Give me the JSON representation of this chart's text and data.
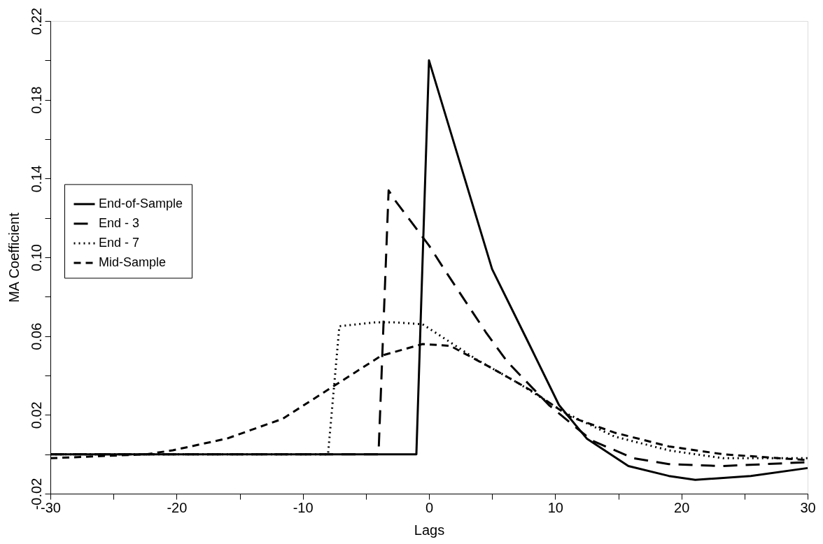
{
  "chart_data": {
    "type": "line",
    "xlabel": "Lags",
    "ylabel": "MA Coefficient",
    "xlim": [
      -30,
      30
    ],
    "ylim": [
      -0.02,
      0.22
    ],
    "xticks": [
      -30,
      {
        "value": -25,
        "label": null
      },
      -20,
      {
        "value": -15,
        "label": null
      },
      -10,
      {
        "value": -5,
        "label": null
      },
      0,
      {
        "value": 5,
        "label": null
      },
      10,
      {
        "value": 15,
        "label": null
      },
      20,
      {
        "value": 25,
        "label": null
      },
      30
    ],
    "yticks": [
      -0.02,
      {
        "value": 0,
        "label": null
      },
      0.02,
      {
        "value": 0.04,
        "label": null
      },
      0.06,
      {
        "value": 0.08,
        "label": null
      },
      {
        "value": 0.1,
        "label": "0.10"
      },
      {
        "value": 0.12,
        "label": null
      },
      0.14,
      {
        "value": 0.16,
        "label": null
      },
      0.18,
      {
        "value": 0.2,
        "label": null
      },
      0.22
    ],
    "grid": false,
    "legend": "left",
    "marker": "none",
    "series": [
      {
        "name": "End-of-Sample",
        "color": "#000000",
        "line_style": "solid",
        "x": [
          -30,
          -1,
          0,
          2.5,
          5,
          7.7,
          10.3,
          12.5,
          15.8,
          19,
          21.1,
          25.5,
          30
        ],
        "values": [
          0,
          0,
          0.2,
          0.147,
          0.094,
          0.059,
          0.025,
          0.008,
          -0.006,
          -0.011,
          -0.013,
          -0.011,
          -0.007
        ]
      },
      {
        "name": "End - 3",
        "color": "#000000",
        "line_style": "longdash",
        "x": [
          -30,
          -4,
          -3.2,
          -2.7,
          0,
          1.2,
          4.5,
          6.2,
          9.5,
          12.9,
          16.2,
          19,
          23.3,
          30
        ],
        "values": [
          0,
          0,
          0.134,
          0.129,
          0.106,
          0.094,
          0.062,
          0.047,
          0.025,
          0.007,
          -0.002,
          -0.005,
          -0.006,
          -0.004
        ]
      },
      {
        "name": "End - 7",
        "color": "#000000",
        "line_style": "dotted",
        "x": [
          -30,
          -8,
          -7.1,
          -4.2,
          -2.7,
          -0.5,
          3.8,
          7.1,
          10.8,
          14.7,
          19,
          23.3,
          30
        ],
        "values": [
          0,
          0,
          0.065,
          0.067,
          0.067,
          0.066,
          0.048,
          0.036,
          0.021,
          0.009,
          0.002,
          -0.002,
          -0.002
        ]
      },
      {
        "name": "Mid-Sample",
        "color": "#000000",
        "line_style": "dashed",
        "x": [
          -30,
          -22.4,
          -20.3,
          -16,
          -11.6,
          -7.7,
          -3.8,
          -2.7,
          -0.5,
          1.7,
          4.9,
          8.2,
          11.2,
          14.7,
          19,
          23.3,
          30
        ],
        "values": [
          -0.002,
          0,
          0.002,
          0.008,
          0.018,
          0.034,
          0.05,
          0.052,
          0.056,
          0.055,
          0.044,
          0.032,
          0.019,
          0.011,
          0.004,
          0,
          -0.003
        ]
      }
    ]
  }
}
